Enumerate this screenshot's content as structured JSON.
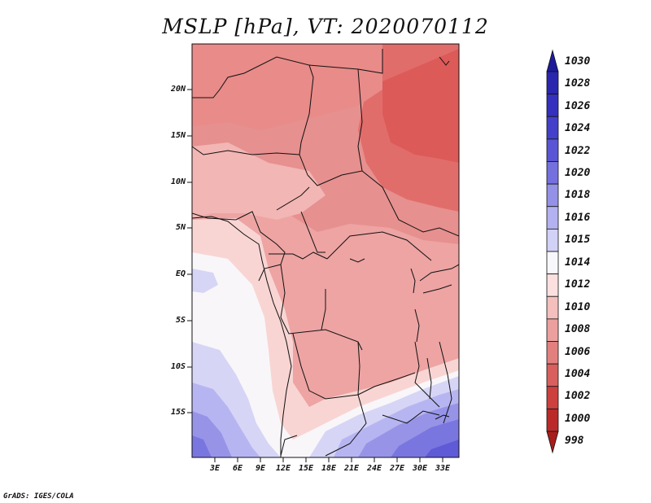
{
  "title": "MSLP [hPa], VT: 2020070112",
  "credit": "GrADS: IGES/COLA",
  "lat_labels": [
    "20N",
    "15N",
    "10N",
    "5N",
    "EQ",
    "5S",
    "10S",
    "15S"
  ],
  "lon_labels": [
    "3E",
    "6E",
    "9E",
    "12E",
    "15E",
    "18E",
    "21E",
    "24E",
    "27E",
    "30E",
    "33E"
  ],
  "colorbar": {
    "levels": [
      "1030",
      "1028",
      "1026",
      "1024",
      "1022",
      "1020",
      "1018",
      "1016",
      "1015",
      "1014",
      "1012",
      "1010",
      "1008",
      "1006",
      "1004",
      "1002",
      "1000",
      "998"
    ],
    "colors": [
      "#1f1a9a",
      "#2a26ae",
      "#3530bd",
      "#4540c9",
      "#5a55d4",
      "#7470de",
      "#9491e7",
      "#b3b1f0",
      "#d2d1f7",
      "#f8f7fb",
      "#fbe0df",
      "#f4bfbd",
      "#eca09e",
      "#e2807e",
      "#d85f5d",
      "#cc403e",
      "#ba2a28",
      "#a81d1b"
    ]
  },
  "colors": {
    "frame": "#111111",
    "background": "#ffffff"
  }
}
